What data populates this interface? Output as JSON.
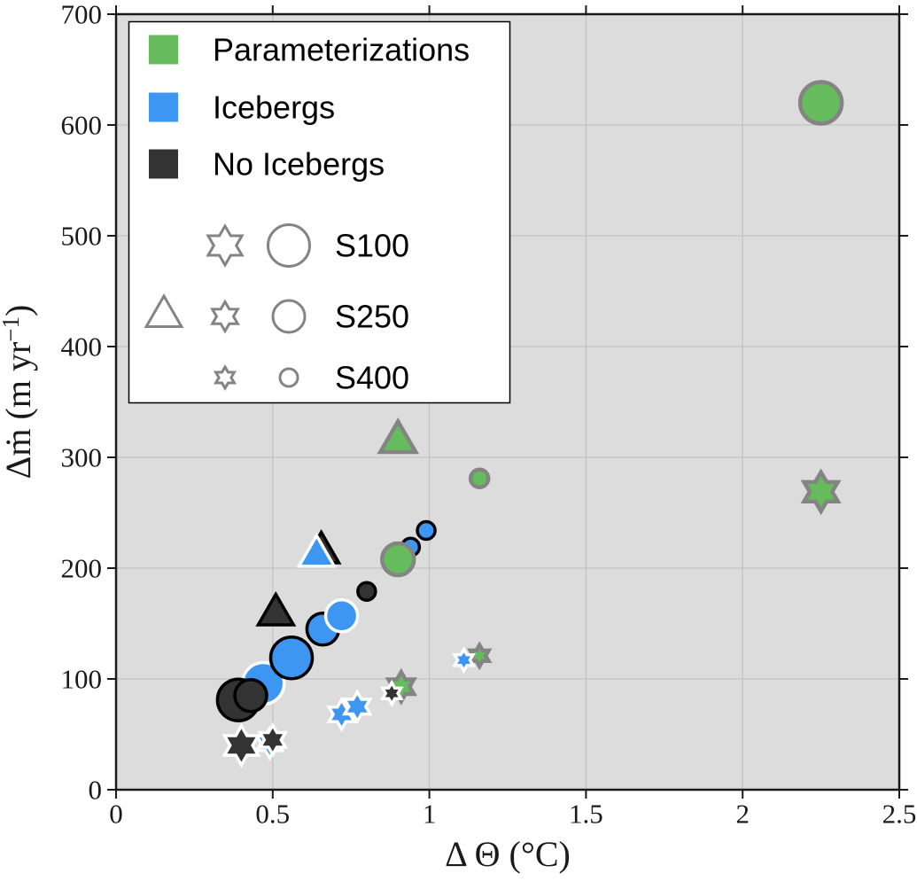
{
  "figure": {
    "background": "#ffffff",
    "plot_background": "#dcdcdc",
    "grid_color": "#c3c3c3",
    "axis_color": "#1a1a1a"
  },
  "chart_data": {
    "type": "scatter",
    "title": "",
    "xlabel": "Δ Θ (°C)",
    "ylabel": "Δṁ (m yr⁻¹)",
    "xlim": [
      0,
      2.5
    ],
    "ylim": [
      0,
      700
    ],
    "xticks": [
      0,
      0.5,
      1,
      1.5,
      2,
      2.5
    ],
    "yticks": [
      0,
      100,
      200,
      300,
      400,
      500,
      600,
      700
    ],
    "grid": true,
    "legend_position": "top-left",
    "group_colors": {
      "Parameterizations": "#66BB5C",
      "Icebergs": "#3E96F3",
      "No Icebergs": "#333333"
    },
    "edge_colors": {
      "gray": "#848484",
      "white": "#ffffff",
      "black": "#000000"
    },
    "size_classes": {
      "S100": {
        "star": 22,
        "circle": 23.5,
        "triangle": 23
      },
      "S250": {
        "star": 16.5,
        "circle": 18,
        "triangle": 23
      },
      "S400": {
        "star": 12,
        "circle": 10,
        "triangle": 23
      }
    },
    "points": [
      {
        "group": "Parameterizations",
        "scenario": "S100",
        "shape": "circle",
        "x": 2.25,
        "y": 620,
        "edge": "gray"
      },
      {
        "group": "Parameterizations",
        "scenario": "S100",
        "shape": "star",
        "x": 2.25,
        "y": 269,
        "edge": "gray"
      },
      {
        "group": "Parameterizations",
        "scenario": "S250",
        "shape": "triangle",
        "x": 0.9,
        "y": 314,
        "edge": "gray"
      },
      {
        "group": "Parameterizations",
        "scenario": "S400",
        "shape": "circle",
        "x": 1.16,
        "y": 281,
        "edge": "gray"
      },
      {
        "group": "Icebergs",
        "scenario": "S400",
        "shape": "circle",
        "x": 0.94,
        "y": 219,
        "edge": "black"
      },
      {
        "group": "Parameterizations",
        "scenario": "S250",
        "shape": "circle",
        "x": 0.9,
        "y": 208,
        "edge": "gray"
      },
      {
        "group": "Icebergs",
        "scenario": "S400",
        "shape": "circle",
        "x": 0.99,
        "y": 234,
        "edge": "black"
      },
      {
        "group": "No Icebergs",
        "scenario": "S250",
        "shape": "triangle",
        "x": 0.655,
        "y": 214,
        "edge": "black",
        "note": "mostly hidden behind Icebergs triangle"
      },
      {
        "group": "Icebergs",
        "scenario": "S250",
        "shape": "triangle",
        "x": 0.64,
        "y": 211,
        "edge": "white"
      },
      {
        "group": "No Icebergs",
        "scenario": "S250",
        "shape": "triangle",
        "x": 0.51,
        "y": 158,
        "edge": "black"
      },
      {
        "group": "Icebergs",
        "scenario": "S250",
        "shape": "circle",
        "x": 0.66,
        "y": 145,
        "edge": "black"
      },
      {
        "group": "Icebergs",
        "scenario": "S250",
        "shape": "circle",
        "x": 0.72,
        "y": 157,
        "edge": "white"
      },
      {
        "group": "No Icebergs",
        "scenario": "S400",
        "shape": "circle",
        "x": 0.8,
        "y": 179,
        "edge": "black"
      },
      {
        "group": "Icebergs",
        "scenario": "S100",
        "shape": "circle",
        "x": 0.47,
        "y": 96,
        "edge": "white"
      },
      {
        "group": "Icebergs",
        "scenario": "S100",
        "shape": "circle",
        "x": 0.56,
        "y": 119,
        "edge": "black"
      },
      {
        "group": "No Icebergs",
        "scenario": "S100",
        "shape": "circle",
        "x": 0.39,
        "y": 81,
        "edge": "black"
      },
      {
        "group": "No Icebergs",
        "scenario": "S250",
        "shape": "circle",
        "x": 0.43,
        "y": 85,
        "edge": "black"
      },
      {
        "group": "Icebergs",
        "scenario": "S250",
        "shape": "star",
        "x": 0.49,
        "y": 42,
        "edge": "white",
        "note": "mostly hidden behind No Icebergs stars"
      },
      {
        "group": "No Icebergs",
        "scenario": "S100",
        "shape": "star",
        "x": 0.4,
        "y": 40,
        "edge": "white"
      },
      {
        "group": "No Icebergs",
        "scenario": "S250",
        "shape": "star",
        "x": 0.5,
        "y": 45,
        "edge": "white"
      },
      {
        "group": "Icebergs",
        "scenario": "S250",
        "shape": "star",
        "x": 0.72,
        "y": 68,
        "edge": "white"
      },
      {
        "group": "Icebergs",
        "scenario": "S250",
        "shape": "star",
        "x": 0.77,
        "y": 75,
        "edge": "white"
      },
      {
        "group": "Parameterizations",
        "scenario": "S250",
        "shape": "star",
        "x": 0.91,
        "y": 93,
        "edge": "gray"
      },
      {
        "group": "No Icebergs",
        "scenario": "S400",
        "shape": "star",
        "x": 0.88,
        "y": 87,
        "edge": "white"
      },
      {
        "group": "Parameterizations",
        "scenario": "S400",
        "shape": "star",
        "x": 1.16,
        "y": 121,
        "edge": "gray"
      },
      {
        "group": "Icebergs",
        "scenario": "S400",
        "shape": "star",
        "x": 1.11,
        "y": 117,
        "edge": "white"
      }
    ]
  },
  "labels": {
    "ylabel_main": "Δṁ (m yr",
    "ylabel_sup": "−1",
    "ylabel_close": ")"
  },
  "legend": {
    "color_entries": [
      {
        "label": "Parameterizations",
        "color": "#66BB5C"
      },
      {
        "label": "Icebergs",
        "color": "#3E96F3"
      },
      {
        "label": "No Icebergs",
        "color": "#333333"
      }
    ],
    "size_entries": [
      {
        "label": "S100",
        "shapes": [
          "star",
          "circle"
        ]
      },
      {
        "label": "S250",
        "shapes": [
          "triangle",
          "star",
          "circle"
        ]
      },
      {
        "label": "S400",
        "shapes": [
          "star",
          "circle"
        ]
      }
    ],
    "marker_stroke": "#848484"
  }
}
